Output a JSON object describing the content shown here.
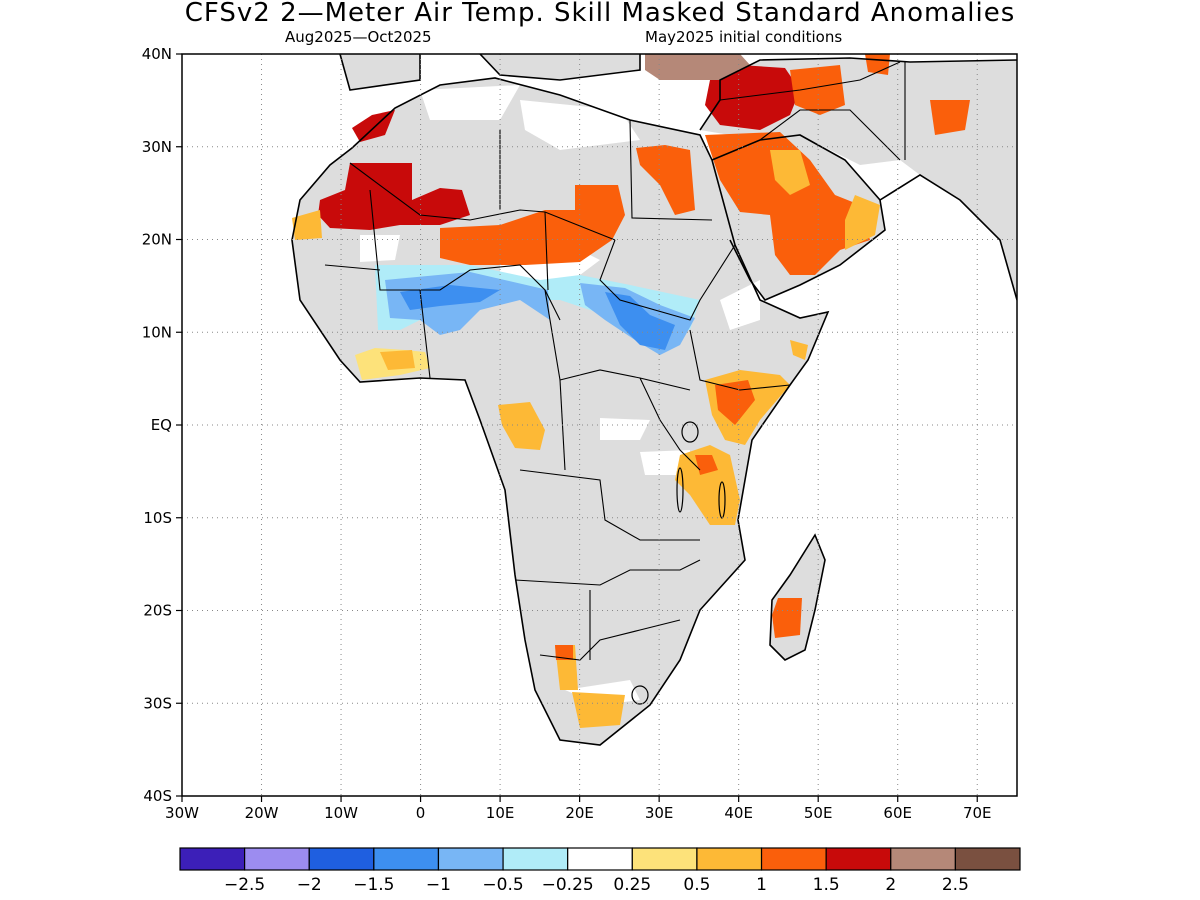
{
  "title": "CFSv2 2—Meter Air Temp. Skill Masked Standard Anomalies",
  "valid_period": "Aug2025—Oct2025",
  "initial_conditions": "May2025 initial conditions",
  "map": {
    "projection": "cylindrical equidistant",
    "lon_range": [
      -30,
      75
    ],
    "lat_range": [
      -40,
      40
    ],
    "lon_ticks": [
      {
        "value": -30,
        "label": "30W"
      },
      {
        "value": -20,
        "label": "20W"
      },
      {
        "value": -10,
        "label": "10W"
      },
      {
        "value": 0,
        "label": "0"
      },
      {
        "value": 10,
        "label": "10E"
      },
      {
        "value": 20,
        "label": "20E"
      },
      {
        "value": 30,
        "label": "30E"
      },
      {
        "value": 40,
        "label": "40E"
      },
      {
        "value": 50,
        "label": "50E"
      },
      {
        "value": 60,
        "label": "60E"
      },
      {
        "value": 70,
        "label": "70E"
      }
    ],
    "lat_ticks": [
      {
        "value": 40,
        "label": "40N"
      },
      {
        "value": 30,
        "label": "30N"
      },
      {
        "value": 20,
        "label": "20N"
      },
      {
        "value": 10,
        "label": "10N"
      },
      {
        "value": 0,
        "label": "EQ"
      },
      {
        "value": -10,
        "label": "10S"
      },
      {
        "value": -20,
        "label": "20S"
      },
      {
        "value": -30,
        "label": "30S"
      },
      {
        "value": -40,
        "label": "40S"
      }
    ],
    "grid": "dotted",
    "masked_color": "#dddddd",
    "anomaly_regions": [
      {
        "name": "northwest-sahara",
        "level": 2
      },
      {
        "name": "mauritania-coast",
        "level": 1
      },
      {
        "name": "sahel-north-band",
        "level": 1.5
      },
      {
        "name": "egypt-sudan",
        "level": 1.5
      },
      {
        "name": "levant-turkey",
        "level": 2
      },
      {
        "name": "anatolia",
        "level": 2.5
      },
      {
        "name": "arabian-peninsula",
        "level": 1.5
      },
      {
        "name": "iran-east",
        "level": 1
      },
      {
        "name": "sahel-cool-west",
        "level": -1
      },
      {
        "name": "sahel-cool-east",
        "level": -1.5
      },
      {
        "name": "guinea-coast",
        "level": 0.5
      },
      {
        "name": "gabon-congo",
        "level": 0.5
      },
      {
        "name": "east-africa",
        "level": 1
      },
      {
        "name": "tanzania",
        "level": 1
      },
      {
        "name": "madagascar",
        "level": 1.5
      },
      {
        "name": "south-africa",
        "level": 1
      }
    ]
  },
  "colorbar": {
    "bins": [
      {
        "color": "#3c1fb8"
      },
      {
        "color": "#9c8cf0"
      },
      {
        "color": "#1f5fe0"
      },
      {
        "color": "#3d8ff0"
      },
      {
        "color": "#78b6f5"
      },
      {
        "color": "#b0ecf8"
      },
      {
        "color": "#ffffff"
      },
      {
        "color": "#fde27a"
      },
      {
        "color": "#fdb936"
      },
      {
        "color": "#fa5f0b"
      },
      {
        "color": "#c80a0a"
      },
      {
        "color": "#b58878"
      },
      {
        "color": "#7a5040"
      }
    ],
    "labels": [
      "−2.5",
      "−2",
      "−1.5",
      "−1",
      "−0.5",
      "−0.25",
      "0.25",
      "0.5",
      "1",
      "1.5",
      "2",
      "2.5"
    ]
  }
}
